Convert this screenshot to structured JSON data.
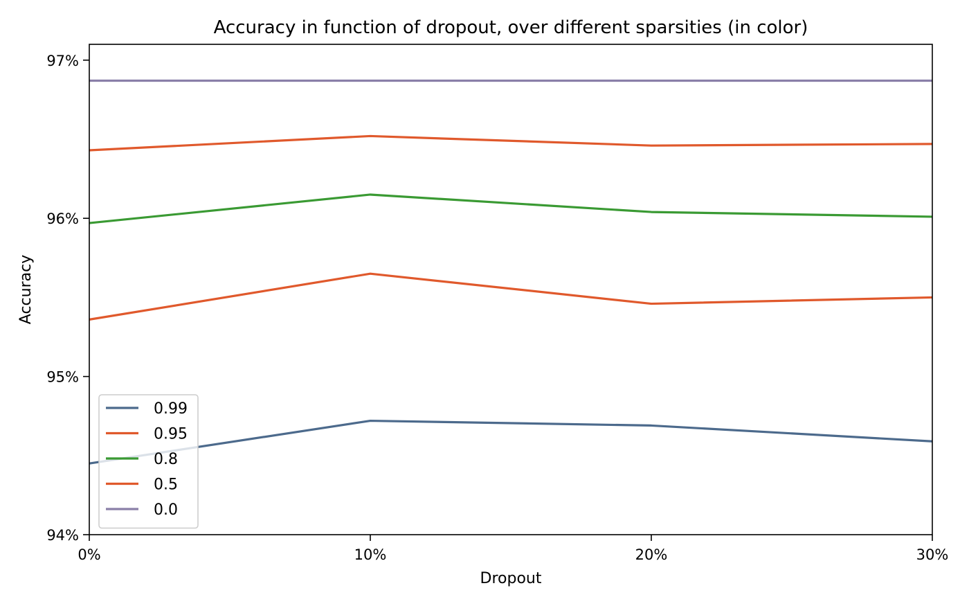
{
  "chart_data": {
    "type": "line",
    "title": "Accuracy in function of dropout, over different sparsities (in color)",
    "xlabel": "Dropout",
    "ylabel": "Accuracy",
    "x": [
      0,
      10,
      20,
      30
    ],
    "x_unit": "%",
    "xlim": [
      0,
      30
    ],
    "xticks": [
      0,
      10,
      20,
      30
    ],
    "xtick_labels": [
      "0%",
      "10%",
      "20%",
      "30%"
    ],
    "ylim": [
      94.0,
      97.1
    ],
    "yticks": [
      94,
      95,
      96,
      97
    ],
    "ytick_labels": [
      "94%",
      "95%",
      "96%",
      "97%"
    ],
    "grid": false,
    "legend_position": "lower-left",
    "series": [
      {
        "name": "0.99",
        "color": "#4c6a8c",
        "values": [
          94.45,
          94.72,
          94.69,
          94.59
        ]
      },
      {
        "name": "0.95",
        "color": "#e0592c",
        "values": [
          96.43,
          96.52,
          96.46,
          96.47
        ]
      },
      {
        "name": "0.8",
        "color": "#3a9a33",
        "values": [
          95.97,
          96.15,
          96.04,
          96.01
        ]
      },
      {
        "name": "0.5",
        "color": "#e0592c",
        "values": [
          95.36,
          95.65,
          95.46,
          95.5
        ]
      },
      {
        "name": "0.0",
        "color": "#8a7fa8",
        "values": [
          96.87,
          96.87,
          96.87,
          96.87
        ]
      }
    ]
  }
}
